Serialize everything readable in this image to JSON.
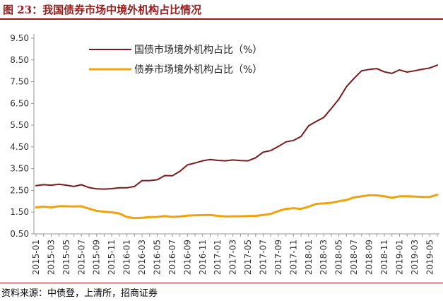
{
  "figure": {
    "title": "图 23：我国债券市场中境外机构占比情况",
    "source": "资料来源：中债登，上清所，招商证券"
  },
  "chart_data": {
    "type": "line",
    "title": "",
    "xlabel": "",
    "ylabel": "",
    "ylim": [
      0.5,
      9.5
    ],
    "yticks": [
      "9.50",
      "8.50",
      "7.50",
      "6.50",
      "5.50",
      "4.50",
      "3.50",
      "2.50",
      "1.50",
      "0.50"
    ],
    "ytick_values": [
      9.5,
      8.5,
      7.5,
      6.5,
      5.5,
      4.5,
      3.5,
      2.5,
      1.5,
      0.5
    ],
    "grid": false,
    "legend_position": "top-center",
    "x": [
      "2015-01",
      "2015-02",
      "2015-03",
      "2015-04",
      "2015-05",
      "2015-06",
      "2015-07",
      "2015-08",
      "2015-09",
      "2015-10",
      "2015-11",
      "2015-12",
      "2016-01",
      "2016-02",
      "2016-03",
      "2016-04",
      "2016-05",
      "2016-06",
      "2016-07",
      "2016-08",
      "2016-09",
      "2016-10",
      "2016-11",
      "2016-12",
      "2017-01",
      "2017-02",
      "2017-03",
      "2017-04",
      "2017-05",
      "2017-06",
      "2017-07",
      "2017-08",
      "2017-09",
      "2017-10",
      "2017-11",
      "2017-12",
      "2018-01",
      "2018-02",
      "2018-03",
      "2018-04",
      "2018-05",
      "2018-06",
      "2018-07",
      "2018-08",
      "2018-09",
      "2018-10",
      "2018-11",
      "2018-12",
      "2019-01",
      "2019-02",
      "2019-03",
      "2019-04",
      "2019-05",
      "2019-06"
    ],
    "x_tick_labels": [
      "2015-01",
      "2015-03",
      "2015-05",
      "2015-07",
      "2015-09",
      "2015-11",
      "2016-01",
      "2016-03",
      "2016-05",
      "2016-07",
      "2016-09",
      "2016-11",
      "2017-01",
      "2017-03",
      "2017-05",
      "2017-07",
      "2017-09",
      "2017-11",
      "2018-01",
      "2018-03",
      "2018-05",
      "2018-07",
      "2018-09",
      "2018-11",
      "2019-01",
      "2019-03",
      "2019-05"
    ],
    "series": [
      {
        "name": "国债市场境外机构占比（%）",
        "color": "#7b1a1a",
        "values": [
          2.72,
          2.76,
          2.74,
          2.78,
          2.74,
          2.68,
          2.76,
          2.63,
          2.57,
          2.56,
          2.58,
          2.62,
          2.62,
          2.68,
          2.95,
          2.95,
          2.99,
          3.18,
          3.17,
          3.38,
          3.67,
          3.76,
          3.86,
          3.92,
          3.88,
          3.86,
          3.9,
          3.87,
          3.86,
          4.0,
          4.26,
          4.33,
          4.52,
          4.73,
          4.8,
          4.98,
          5.47,
          5.67,
          5.85,
          6.27,
          6.7,
          7.27,
          7.65,
          8.0,
          8.06,
          8.1,
          7.95,
          7.88,
          8.04,
          7.94,
          8.0,
          8.07,
          8.13,
          8.26
        ]
      },
      {
        "name": "债券市场境外机构占比（%）",
        "color": "#f2a20d",
        "values": [
          1.72,
          1.75,
          1.72,
          1.77,
          1.77,
          1.76,
          1.77,
          1.66,
          1.56,
          1.52,
          1.49,
          1.44,
          1.28,
          1.22,
          1.24,
          1.27,
          1.28,
          1.32,
          1.28,
          1.3,
          1.34,
          1.35,
          1.36,
          1.37,
          1.33,
          1.3,
          1.31,
          1.31,
          1.32,
          1.33,
          1.37,
          1.42,
          1.55,
          1.65,
          1.68,
          1.65,
          1.75,
          1.88,
          1.9,
          1.93,
          2.0,
          2.06,
          2.18,
          2.23,
          2.28,
          2.27,
          2.23,
          2.16,
          2.23,
          2.23,
          2.22,
          2.2,
          2.2,
          2.3
        ]
      }
    ]
  }
}
